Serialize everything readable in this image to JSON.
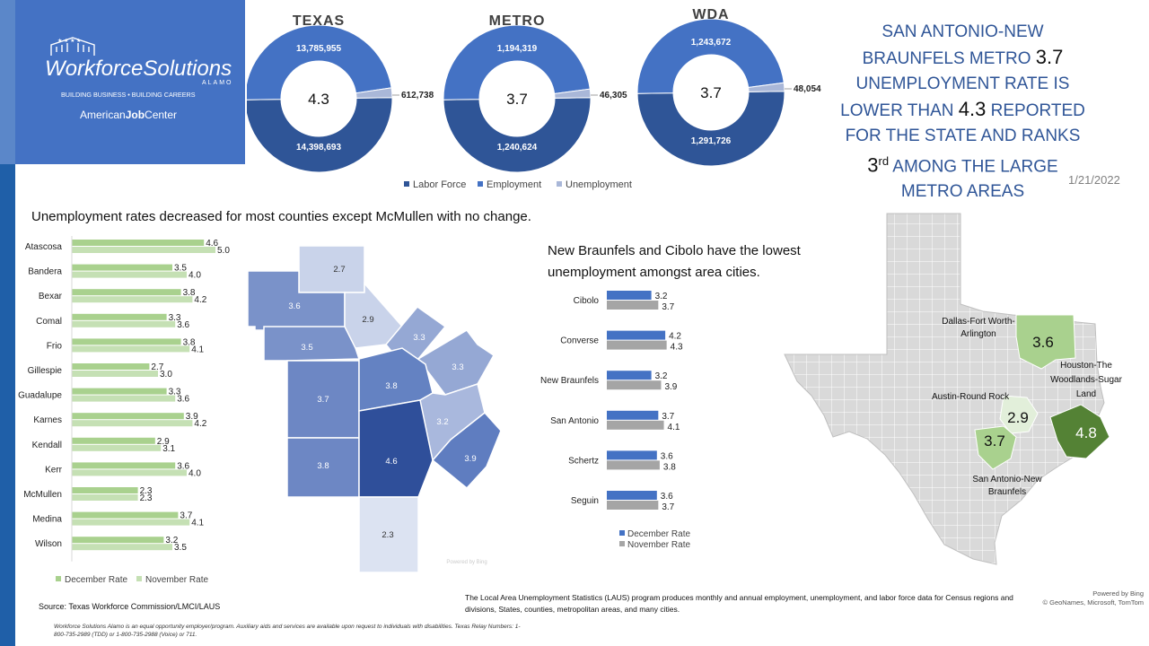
{
  "header": {
    "logo": {
      "name": "WorkforceSolutions",
      "sub": "ALAMO",
      "tagline": "BUILDING BUSINESS • BUILDING CAREERS",
      "ajc_prefix": "American",
      "ajc_bold": "Job",
      "ajc_suffix": "Center"
    },
    "headline": {
      "line1": "SAN ANTONIO-NEW",
      "line2a": "BRAUNFELS METRO ",
      "line2b": "3.7",
      "line3": "UNEMPLOYMENT RATE IS",
      "line4a": "LOWER THAN ",
      "line4b": "4.3",
      "line4c": " REPORTED",
      "line5": "FOR THE STATE AND RANKS",
      "line6a": "3",
      "line6b": "rd",
      "line6c": " AMONG THE LARGE",
      "line7": "METRO AREAS"
    },
    "date": "1/21/2022"
  },
  "colors": {
    "labor_force": "#2f5597",
    "employment": "#4472c4",
    "unemployment": "#a9b7d8",
    "december": "#a9d18e",
    "november": "#c5e0b4",
    "city_dec": "#4472c4",
    "city_nov": "#a5a5a5"
  },
  "donuts": [
    {
      "title": "TEXAS",
      "center": "4.3",
      "labor_force_label": "14,398,693",
      "labor_force": 14398693,
      "employment_label": "13,785,955",
      "employment": 13785955,
      "unemployment_label": "612,738",
      "unemployment": 612738
    },
    {
      "title": "METRO",
      "center": "3.7",
      "labor_force_label": "1,240,624",
      "labor_force": 1240624,
      "employment_label": "1,194,319",
      "employment": 1194319,
      "unemployment_label": "46,305",
      "unemployment": 46305
    },
    {
      "title": "WDA",
      "center": "3.7",
      "labor_force_label": "1,291,726",
      "labor_force": 1291726,
      "employment_label": "1,243,672",
      "employment": 1243672,
      "unemployment_label": "48,054",
      "unemployment": 48054
    }
  ],
  "donut_legend": [
    "Labor Force",
    "Employment",
    "Unemployment"
  ],
  "counties_title": "Unemployment rates decreased for most counties except McMullen with no change.",
  "counties_legend": [
    "December Rate",
    "November Rate"
  ],
  "cities_title": "New Braunfels and Cibolo have the lowest unemployment amongst area cities.",
  "cities_legend": [
    "December Rate",
    "November Rate"
  ],
  "county_map_values": [
    "2.7",
    "3.6",
    "2.9",
    "3.5",
    "3.3",
    "3.3",
    "3.7",
    "3.8",
    "3.2",
    "3.8",
    "4.6",
    "3.9",
    "2.3"
  ],
  "county_map_watermark": "Powered by Bing",
  "texas_map": {
    "labels": {
      "dfw": "Dallas-Fort Worth-Arlington",
      "houston": "Houston-The Woodlands-Sugar Land",
      "austin": "Austin-Round Rock",
      "sa": "San Antonio-New Braunfels"
    },
    "values": {
      "dfw": "3.6",
      "houston": "4.8",
      "austin": "2.9",
      "sa": "3.7"
    }
  },
  "footer": {
    "source": "Source: Texas Workforce Commission/LMCI/LAUS",
    "eo": "Workforce Solutions Alamo is an equal opportunity employer/program. Auxiliary aids and services are available upon request to individuals with disabilities. Texas Relay Numbers: 1-800-735-2989 (TDD) or 1-800-735-2988 (Voice) or 711.",
    "laus": "The Local Area Unemployment Statistics (LAUS) program produces monthly and annual employment, unemployment, and labor force data for Census regions and divisions, States, counties, metropolitan areas, and many cities.",
    "bing1": "Powered by Bing",
    "bing2": "© GeoNames, Microsoft, TomTom"
  },
  "chart_data": [
    {
      "type": "bar",
      "orientation": "horizontal",
      "title": "Unemployment rates decreased for most counties except McMullen with no change.",
      "categories": [
        "Atascosa",
        "Bandera",
        "Bexar",
        "Comal",
        "Frio",
        "Gillespie",
        "Guadalupe",
        "Karnes",
        "Kendall",
        "Kerr",
        "McMullen",
        "Medina",
        "Wilson"
      ],
      "series": [
        {
          "name": "December Rate",
          "values": [
            4.6,
            3.5,
            3.8,
            3.3,
            3.8,
            2.7,
            3.3,
            3.9,
            2.9,
            3.6,
            2.3,
            3.7,
            3.2
          ]
        },
        {
          "name": "November Rate",
          "values": [
            5.0,
            4.0,
            4.2,
            3.6,
            4.1,
            3.0,
            3.6,
            4.2,
            3.1,
            4.0,
            2.3,
            4.1,
            3.5
          ]
        }
      ],
      "legend": "bottom"
    },
    {
      "type": "bar",
      "orientation": "horizontal",
      "title": "New Braunfels and Cibolo have the lowest unemployment amongst area cities.",
      "categories": [
        "Cibolo",
        "Converse",
        "New Braunfels",
        "San Antonio",
        "Schertz",
        "Seguin"
      ],
      "series": [
        {
          "name": "December Rate",
          "values": [
            3.2,
            4.2,
            3.2,
            3.7,
            3.6,
            3.6
          ]
        },
        {
          "name": "November Rate",
          "values": [
            3.7,
            4.3,
            3.9,
            4.1,
            3.8,
            3.7
          ]
        }
      ],
      "legend": "bottom"
    },
    {
      "type": "pie",
      "categories": [
        "Labor Force",
        "Employment",
        "Unemployment"
      ],
      "series": [
        {
          "name": "TEXAS",
          "values": [
            14398693,
            13785955,
            612738
          ]
        },
        {
          "name": "METRO",
          "values": [
            1240624,
            1194319,
            46305
          ]
        },
        {
          "name": "WDA",
          "values": [
            1291726,
            1243672,
            48054
          ]
        }
      ],
      "legend": "bottom"
    }
  ]
}
